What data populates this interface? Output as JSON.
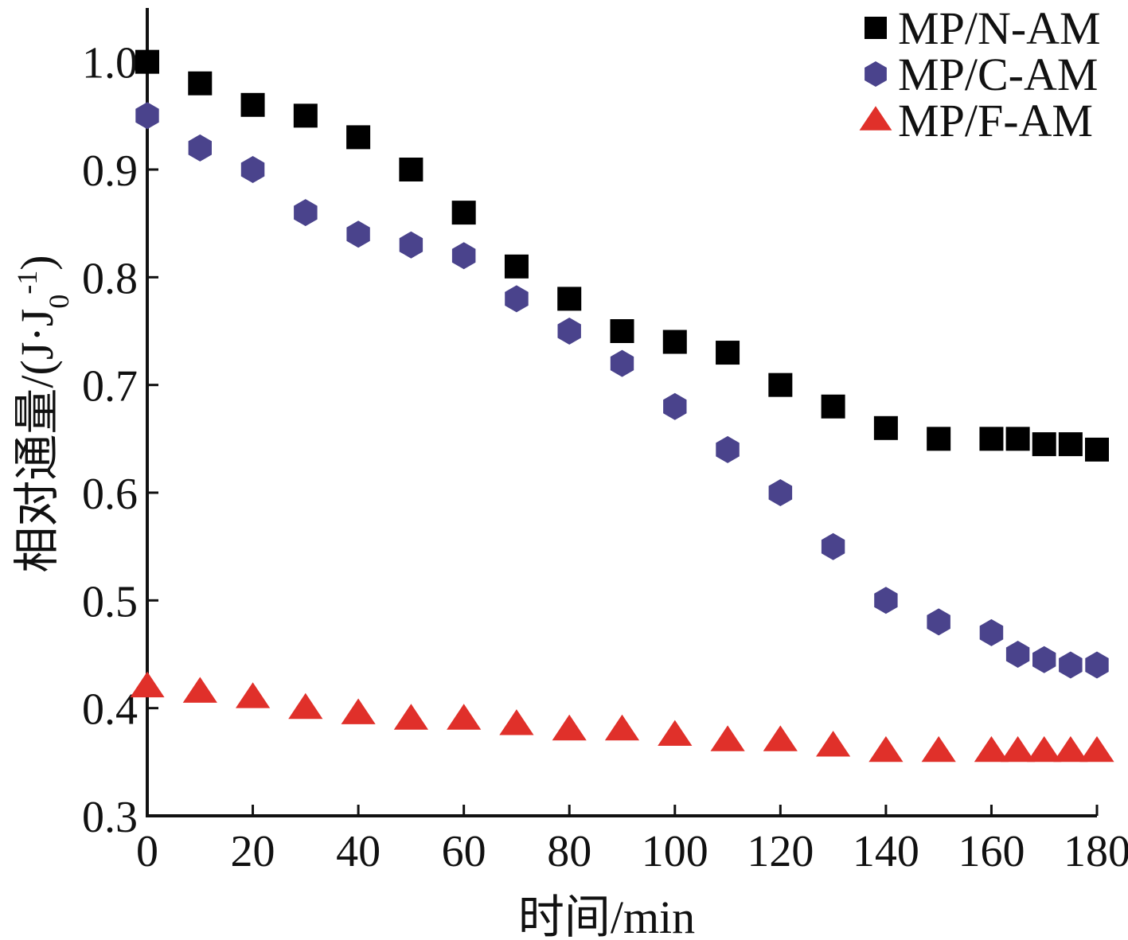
{
  "chart_data": {
    "type": "scatter",
    "title": "",
    "xlabel": "时间/min",
    "ylabel_main": "相对通量/(J·J",
    "ylabel_sub": "0",
    "ylabel_sup": "-1",
    "ylabel_close": ")",
    "xlim": [
      0,
      180
    ],
    "ylim": [
      0.3,
      1.05
    ],
    "x_ticks": [
      0,
      20,
      40,
      60,
      80,
      100,
      120,
      140,
      160,
      180
    ],
    "x_tick_labels": [
      "0",
      "20",
      "40",
      "60",
      "80",
      "100",
      "120",
      "140",
      "160",
      "180"
    ],
    "y_ticks": [
      0.3,
      0.4,
      0.5,
      0.6,
      0.7,
      0.8,
      0.9,
      1.0
    ],
    "y_tick_labels": [
      "0.3",
      "0.4",
      "0.5",
      "0.6",
      "0.7",
      "0.8",
      "0.9",
      "1.0"
    ],
    "grid": false,
    "legend_position": "top-right",
    "series": [
      {
        "name": "MP/N-AM",
        "marker": "square",
        "color": "#000000",
        "x": [
          0,
          10,
          20,
          30,
          40,
          50,
          60,
          70,
          80,
          90,
          100,
          110,
          120,
          130,
          140,
          150,
          160,
          165,
          170,
          175,
          180
        ],
        "y": [
          1.0,
          0.98,
          0.96,
          0.95,
          0.93,
          0.9,
          0.86,
          0.81,
          0.78,
          0.75,
          0.74,
          0.73,
          0.7,
          0.68,
          0.66,
          0.65,
          0.65,
          0.65,
          0.645,
          0.645,
          0.64
        ]
      },
      {
        "name": "MP/C-AM",
        "marker": "hexagon",
        "color": "#4a438c",
        "x": [
          0,
          10,
          20,
          30,
          40,
          50,
          60,
          70,
          80,
          90,
          100,
          110,
          120,
          130,
          140,
          150,
          160,
          165,
          170,
          175,
          180
        ],
        "y": [
          0.95,
          0.92,
          0.9,
          0.86,
          0.84,
          0.83,
          0.82,
          0.78,
          0.75,
          0.72,
          0.68,
          0.64,
          0.6,
          0.55,
          0.5,
          0.48,
          0.47,
          0.45,
          0.445,
          0.44,
          0.44
        ]
      },
      {
        "name": "MP/F-AM",
        "marker": "triangle",
        "color": "#e0302a",
        "x": [
          0,
          10,
          20,
          30,
          40,
          50,
          60,
          70,
          80,
          90,
          100,
          110,
          120,
          130,
          140,
          150,
          160,
          165,
          170,
          175,
          180
        ],
        "y": [
          0.42,
          0.415,
          0.41,
          0.4,
          0.395,
          0.39,
          0.39,
          0.385,
          0.38,
          0.38,
          0.375,
          0.37,
          0.37,
          0.365,
          0.36,
          0.36,
          0.36,
          0.36,
          0.36,
          0.36,
          0.36
        ]
      }
    ]
  }
}
